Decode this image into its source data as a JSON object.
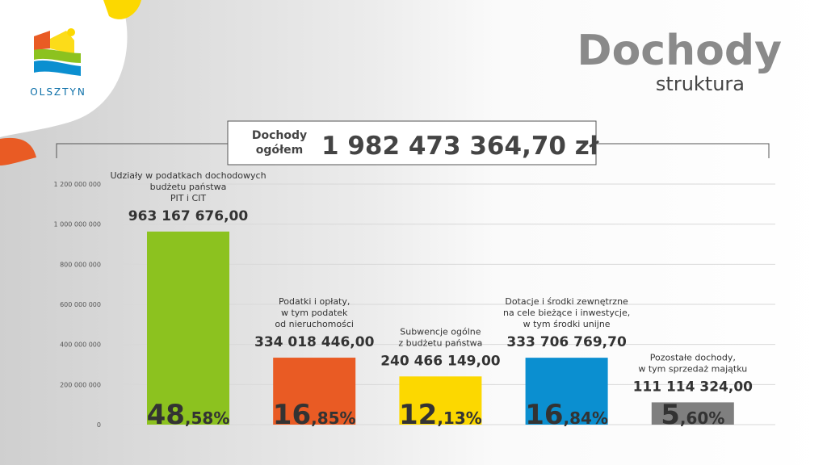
{
  "logo_text": "OLSZTYN",
  "chart_data": {
    "type": "bar",
    "title": "Dochody",
    "subtitle": "struktura",
    "total": {
      "label": "Dochody\nogółem",
      "value": 1982473364.7,
      "value_label": "1 982 473 364,70 zł"
    },
    "categories": [
      "Udziały w podatkach dochodowych\nbudżetu państwa\nPIT i CIT",
      "Podatki i opłaty,\nw tym podatek\nod nieruchomości",
      "Subwencje  ogólne\nz budżetu państwa",
      "Dotacje i środki zewnętrzne\nna cele bieżące  i inwestycje,\nw tym środki unijne",
      "Pozostałe dochody,\nw tym sprzedaż majątku"
    ],
    "values": [
      963167676.0,
      334018446.0,
      240466149.0,
      333706769.7,
      111114324.0
    ],
    "value_labels": [
      "963 167 676,00",
      "334 018 446,00",
      "240 466 149,00",
      "333 706 769,70",
      "111 114 324,00"
    ],
    "shares": [
      48.58,
      16.85,
      12.13,
      16.84,
      5.6
    ],
    "share_labels": [
      "48,58%",
      "16,85%",
      "12,13%",
      "16,84%",
      "5,60%"
    ],
    "colors": [
      "#8cc21f",
      "#e95b24",
      "#fcd800",
      "#0b8fd0",
      "#7f7f7f"
    ],
    "ylim": [
      0,
      1200000000
    ],
    "yticks": [
      0,
      {
        "value": 200000000,
        "label": "200 000 000"
      },
      {
        "value": 400000000,
        "label": "400 000 000"
      },
      {
        "value": 600000000,
        "label": "600 000 000"
      },
      {
        "value": 800000000,
        "label": "800 000 000"
      },
      {
        "value": 1000000000,
        "label": "1 000 000 000"
      },
      {
        "value": 1200000000,
        "label": "1 200 000 000"
      }
    ],
    "grid": true
  }
}
